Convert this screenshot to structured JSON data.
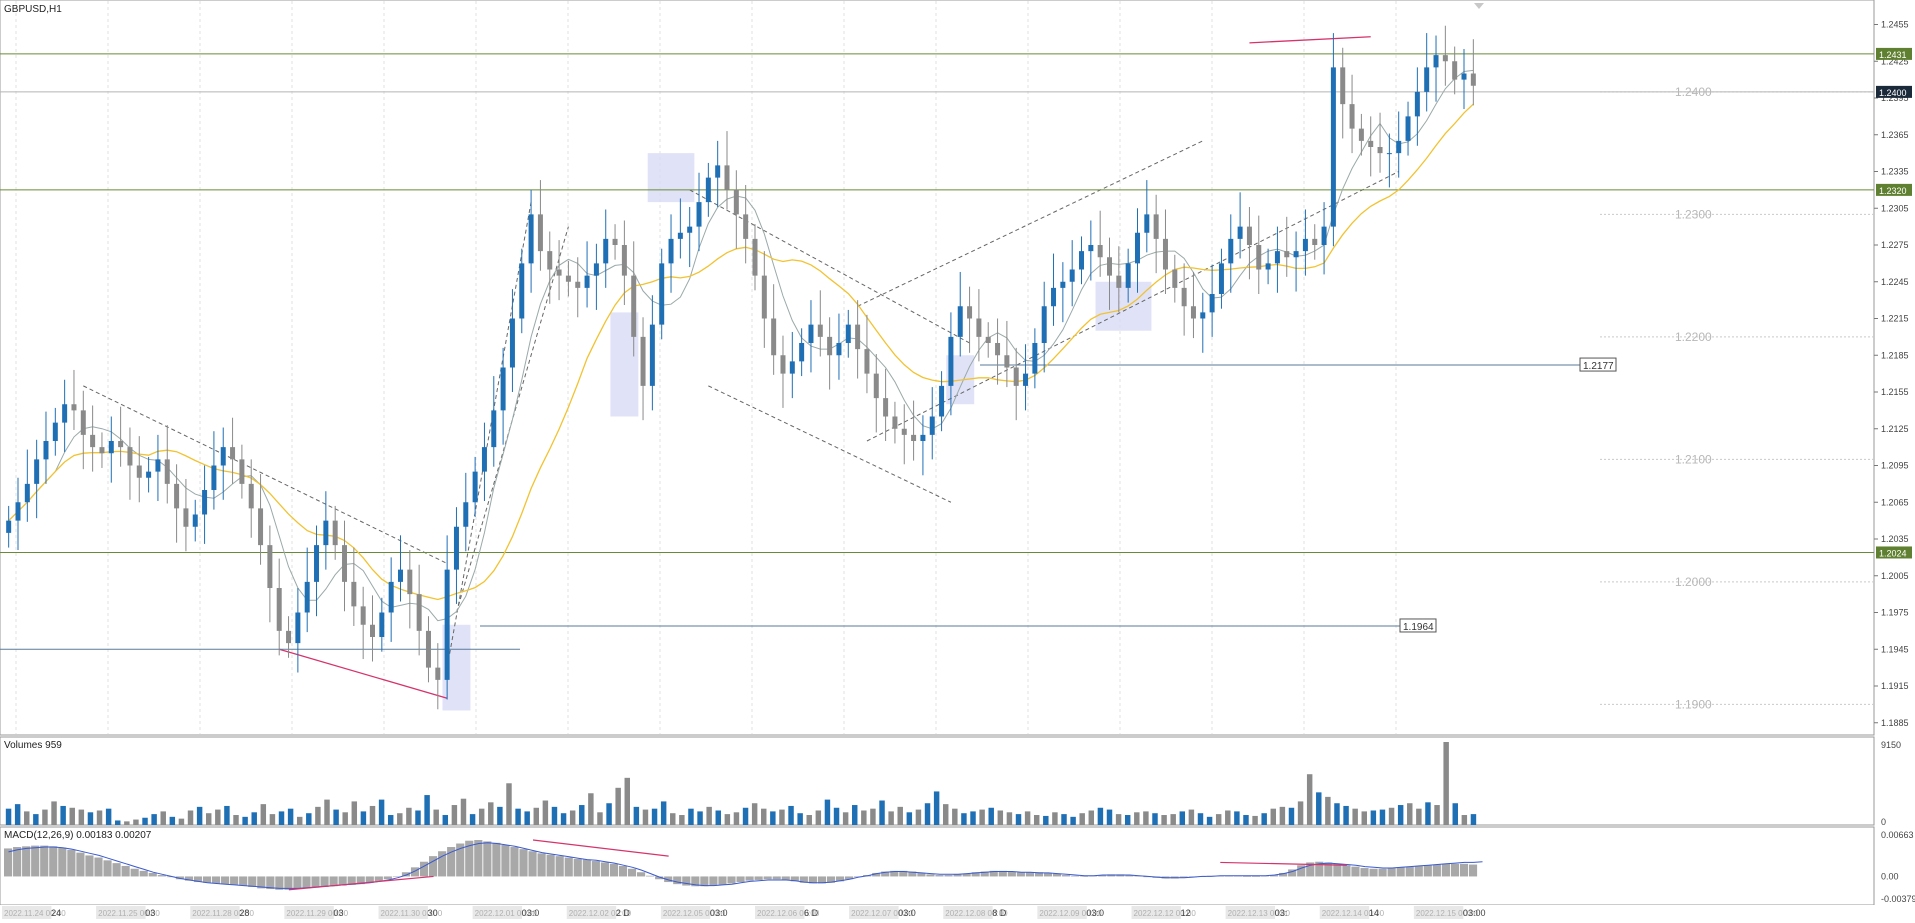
{
  "window": {
    "symbol_title": "GBPUSD,H1"
  },
  "panes": {
    "volumes_title": "Volumes 959",
    "macd_title": "MACD(12,26,9) 0.00183 0.00207"
  },
  "colors": {
    "bull": "#1f6fb5",
    "bear": "#8a8a8a",
    "ma_fast": "#f2c230",
    "ma_slow": "#9aa9a9",
    "hline_green": "#6a8a3a",
    "hline_blue": "#5a7a9a",
    "pink": "#d6336c",
    "highlight": "#d8dcf5",
    "price_tag_dark": "#1b2a3a",
    "price_tag_green": "#5f8030",
    "macd_hist": "#a8a8a8",
    "macd_signal": "#3a5ad0"
  },
  "chart_data": [
    {
      "type": "candlestick",
      "title": "GBPUSD,H1",
      "y_axis_ticks": [
        "1.2455",
        "1.2425",
        "1.2395",
        "1.2365",
        "1.2335",
        "1.2305",
        "1.2275",
        "1.2245",
        "1.2215",
        "1.2185",
        "1.2155",
        "1.2125",
        "1.2095",
        "1.2065",
        "1.2035",
        "1.2005",
        "1.1975",
        "1.1945",
        "1.1915",
        "1.1885"
      ],
      "ylim": [
        1.1875,
        1.2475
      ],
      "x_axis_labels": [
        "2022.11.24 00:00",
        "24",
        "2022.11.25 00:00",
        "03",
        "2022.11.28 00:00",
        "28",
        "2022.11.29 00:00",
        "03",
        "2022.11.30 00:00",
        "30",
        "2022.12.01 00:00",
        "03:0",
        "2022.12.02 00:00",
        "2 D",
        "2022.12.05 00:00",
        "03:0",
        "2022.12.06 00:00",
        "6 D",
        "2022.12.07 00:00",
        "03:0",
        "2022.12.08 00:00",
        "8 D",
        "2022.12.09 00:00",
        "03:0",
        "2022.12.12 00:00",
        "12",
        "2022.12.13 00:00",
        "03:",
        "2022.12.14 00:00",
        "14",
        "2022.12.15 00:00",
        "03:00"
      ],
      "horizontal_levels": [
        {
          "price": 1.2431,
          "label": "1.2431",
          "style": "green-tag"
        },
        {
          "price": 1.24,
          "label": "1.2400",
          "style": "dark-tag"
        },
        {
          "price": 1.232,
          "label": "1.2320",
          "style": "green-tag"
        },
        {
          "price": 1.2024,
          "label": "1.2024",
          "style": "green-tag"
        }
      ],
      "level_texts": [
        {
          "price": 1.24,
          "label": "1.2400"
        },
        {
          "price": 1.23,
          "label": "1.2300"
        },
        {
          "price": 1.22,
          "label": "1.2200"
        },
        {
          "price": 1.21,
          "label": "1.2100"
        },
        {
          "price": 1.2,
          "label": "1.2000"
        },
        {
          "price": 1.19,
          "label": "1.1900"
        }
      ],
      "boxed_labels": [
        {
          "price": 1.2177,
          "label": "1.2177"
        },
        {
          "price": 1.1964,
          "label": "1.1964"
        }
      ],
      "price_path": [
        1.205,
        1.2065,
        1.208,
        1.21,
        1.2115,
        1.213,
        1.2145,
        1.214,
        1.212,
        1.211,
        1.2105,
        1.2115,
        1.211,
        1.2095,
        1.2085,
        1.209,
        1.21,
        1.208,
        1.206,
        1.2045,
        1.2055,
        1.2075,
        1.2095,
        1.211,
        1.21,
        1.208,
        1.206,
        1.203,
        1.1995,
        1.196,
        1.195,
        1.1975,
        1.2,
        1.203,
        1.205,
        1.203,
        1.2,
        1.198,
        1.1965,
        1.1955,
        1.1975,
        1.2,
        1.201,
        1.199,
        1.196,
        1.193,
        1.192,
        1.201,
        1.2045,
        1.2065,
        1.209,
        1.211,
        1.214,
        1.2175,
        1.2215,
        1.226,
        1.23,
        1.227,
        1.2255,
        1.225,
        1.2245,
        1.224,
        1.225,
        1.226,
        1.228,
        1.2275,
        1.225,
        1.22,
        1.216,
        1.221,
        1.226,
        1.228,
        1.2285,
        1.229,
        1.231,
        1.233,
        1.234,
        1.232,
        1.23,
        1.228,
        1.225,
        1.2215,
        1.2185,
        1.217,
        1.218,
        1.2195,
        1.221,
        1.22,
        1.2185,
        1.2195,
        1.221,
        1.219,
        1.217,
        1.215,
        1.2135,
        1.2125,
        1.212,
        1.2115,
        1.212,
        1.2135,
        1.216,
        1.22,
        1.2225,
        1.2215,
        1.22,
        1.2195,
        1.2185,
        1.2175,
        1.216,
        1.217,
        1.2195,
        1.2225,
        1.224,
        1.2245,
        1.2255,
        1.227,
        1.2275,
        1.2265,
        1.225,
        1.224,
        1.226,
        1.2285,
        1.23,
        1.228,
        1.2255,
        1.224,
        1.2225,
        1.2215,
        1.222,
        1.2235,
        1.226,
        1.228,
        1.229,
        1.2275,
        1.2255,
        1.226,
        1.227,
        1.2265,
        1.227,
        1.228,
        1.2275,
        1.229,
        1.242,
        1.239,
        1.237,
        1.236,
        1.2355,
        1.235,
        1.235,
        1.236,
        1.238,
        1.24,
        1.242,
        1.243,
        1.2425,
        1.241,
        1.2415,
        1.2405
      ]
    },
    {
      "type": "bar",
      "title": "Volumes 959",
      "y_axis_ticks": [
        "9150",
        "0"
      ],
      "ylim": [
        0,
        9150
      ],
      "values": [
        1800,
        2300,
        1500,
        1200,
        1700,
        2600,
        2100,
        1900,
        1700,
        1400,
        1600,
        1800,
        500,
        400,
        600,
        800,
        1200,
        1500,
        900,
        700,
        1600,
        2000,
        1300,
        1700,
        2100,
        1100,
        900,
        1400,
        2300,
        1200,
        1500,
        1800,
        900,
        1300,
        2000,
        2800,
        1700,
        1400,
        2600,
        1500,
        2100,
        2800,
        1100,
        1300,
        1900,
        1600,
        3300,
        1700,
        1100,
        2200,
        2900,
        1200,
        1800,
        2500,
        2000,
        4600,
        1800,
        1500,
        1900,
        2700,
        2000,
        1300,
        1600,
        2200,
        3500,
        1400,
        2400,
        4100,
        5200,
        2000,
        1700,
        1800,
        2600,
        1300,
        1100,
        1800,
        1500,
        2000,
        1600,
        1200,
        1400,
        1900,
        2400,
        1800,
        1500,
        1700,
        2100,
        1300,
        1100,
        1600,
        2800,
        1900,
        1400,
        2200,
        1600,
        1800,
        2700,
        1500,
        2000,
        1400,
        1700,
        2400,
        3700,
        2300,
        1800,
        1300,
        1500,
        1700,
        1900,
        1600,
        1400,
        1200,
        1500,
        1100,
        1000,
        1400,
        1200,
        900,
        1300,
        1600,
        1900,
        1700,
        1200,
        1100,
        1400,
        1500,
        1300,
        1100,
        1200,
        1500,
        1700,
        1300,
        900,
        1200,
        1600,
        1500,
        1100,
        1000,
        1300,
        1800,
        2000,
        1900,
        2600,
        5600,
        3600,
        3100,
        2400,
        2100,
        1800,
        1500,
        1600,
        1700,
        1900,
        2200,
        2400,
        1800,
        2500,
        2200,
        9150,
        2400,
        1100,
        1200
      ]
    },
    {
      "type": "bar",
      "title": "MACD(12,26,9) 0.00183 0.00207",
      "y_axis_ticks": [
        "0.00663",
        "0.00",
        "-0.00379"
      ],
      "ylim": [
        -0.00379,
        0.00663
      ],
      "histogram_values": [
        0.004,
        0.0042,
        0.0043,
        0.0044,
        0.0044,
        0.0043,
        0.0041,
        0.0038,
        0.0034,
        0.003,
        0.0027,
        0.0023,
        0.0019,
        0.0015,
        0.0011,
        0.0008,
        0.0005,
        0.0002,
        -0.0001,
        -0.0004,
        -0.0006,
        -0.0008,
        -0.0009,
        -0.001,
        -0.0011,
        -0.0012,
        -0.0013,
        -0.0015,
        -0.0017,
        -0.0018,
        -0.0019,
        -0.0019,
        -0.0018,
        -0.0017,
        -0.0016,
        -0.0015,
        -0.0014,
        -0.0013,
        -0.0012,
        -0.0011,
        -0.0009,
        -0.0007,
        -0.0004,
        0.0,
        0.0006,
        0.0013,
        0.0021,
        0.0029,
        0.0036,
        0.0042,
        0.0047,
        0.0051,
        0.0052,
        0.005,
        0.0048,
        0.0045,
        0.0042,
        0.0039,
        0.0036,
        0.0033,
        0.0031,
        0.0029,
        0.0027,
        0.0025,
        0.0024,
        0.0022,
        0.002,
        0.0018,
        0.0015,
        0.0011,
        0.0006,
        0.0001,
        -0.0004,
        -0.0008,
        -0.0011,
        -0.0013,
        -0.0014,
        -0.0014,
        -0.0013,
        -0.0012,
        -0.001,
        -0.0008,
        -0.0006,
        -0.0005,
        -0.0004,
        -0.0004,
        -0.0005,
        -0.0007,
        -0.0009,
        -0.001,
        -0.001,
        -0.0009,
        -0.0007,
        -0.0004,
        -0.0001,
        0.0002,
        0.0005,
        0.0007,
        0.0008,
        0.0008,
        0.0007,
        0.0005,
        0.0003,
        0.0002,
        0.0002,
        0.0003,
        0.0004,
        0.0006,
        0.0007,
        0.0008,
        0.0008,
        0.0007,
        0.0006,
        0.0006,
        0.0006,
        0.0005,
        0.0004,
        0.0002,
        0.0001,
        0.0,
        0.0001,
        0.0002,
        0.0003,
        0.0003,
        0.0002,
        0.0001,
        -0.0001,
        -0.0002,
        -0.0003,
        -0.0003,
        -0.0002,
        -0.0001,
        0.0,
        0.0001,
        0.0001,
        0.0001,
        0.0001,
        0.0,
        0.0,
        0.0001,
        0.0002,
        0.0005,
        0.001,
        0.0016,
        0.002,
        0.0021,
        0.002,
        0.0018,
        0.0016,
        0.0014,
        0.0012,
        0.0011,
        0.0011,
        0.0012,
        0.0013,
        0.0014,
        0.0015,
        0.0016,
        0.0017,
        0.0018,
        0.0018,
        0.0018,
        0.0017
      ],
      "signal_values": [
        0.0035,
        0.0038,
        0.004,
        0.0041,
        0.0042,
        0.0042,
        0.0041,
        0.0039,
        0.0036,
        0.0033,
        0.003,
        0.0026,
        0.0022,
        0.0018,
        0.0014,
        0.001,
        0.0006,
        0.0003,
        0.0,
        -0.0003,
        -0.0005,
        -0.0007,
        -0.0009,
        -0.001,
        -0.0011,
        -0.0012,
        -0.0013,
        -0.0014,
        -0.0015,
        -0.0016,
        -0.0017,
        -0.0017,
        -0.0017,
        -0.0016,
        -0.0015,
        -0.0014,
        -0.0013,
        -0.0012,
        -0.0011,
        -0.001,
        -0.0009,
        -0.0007,
        -0.0005,
        -0.0002,
        0.0002,
        0.0008,
        0.0015,
        0.0022,
        0.0029,
        0.0035,
        0.004,
        0.0044,
        0.0047,
        0.0048,
        0.0047,
        0.0045,
        0.0043,
        0.004,
        0.0037,
        0.0034,
        0.0032,
        0.003,
        0.0028,
        0.0026,
        0.0024,
        0.0023,
        0.0021,
        0.0019,
        0.0016,
        0.0013,
        0.0009,
        0.0004,
        -0.0001,
        -0.0005,
        -0.0008,
        -0.001,
        -0.0012,
        -0.0013,
        -0.0013,
        -0.0012,
        -0.0011,
        -0.0009,
        -0.0007,
        -0.0006,
        -0.0005,
        -0.0005,
        -0.0005,
        -0.0006,
        -0.0008,
        -0.0009,
        -0.0009,
        -0.0008,
        -0.0006,
        -0.0004,
        -0.0001,
        0.0001,
        0.0004,
        0.0006,
        0.0007,
        0.0007,
        0.0006,
        0.0005,
        0.0004,
        0.0003,
        0.0003,
        0.0003,
        0.0004,
        0.0005,
        0.0006,
        0.0007,
        0.0007,
        0.0007,
        0.0006,
        0.0006,
        0.0005,
        0.0005,
        0.0004,
        0.0003,
        0.0002,
        0.0001,
        0.0001,
        0.0002,
        0.0002,
        0.0002,
        0.0002,
        0.0001,
        0.0,
        -0.0001,
        -0.0002,
        -0.0002,
        -0.0002,
        -0.0001,
        0.0,
        0.0,
        0.0001,
        0.0001,
        0.0001,
        0.0001,
        0.0001,
        0.0001,
        0.0002,
        0.0004,
        0.0007,
        0.0012,
        0.0016,
        0.0018,
        0.0019,
        0.0018,
        0.0017,
        0.0016,
        0.0014,
        0.0013,
        0.0012,
        0.0012,
        0.0013,
        0.0014,
        0.0015,
        0.0016,
        0.0017,
        0.0018,
        0.0019,
        0.002,
        0.002,
        0.0021
      ]
    }
  ]
}
